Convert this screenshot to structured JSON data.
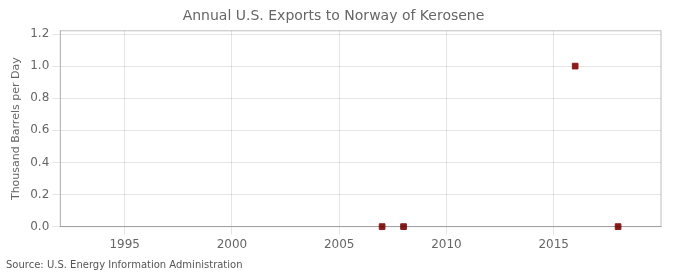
{
  "chart_data": {
    "type": "scatter",
    "title": "Annual U.S. Exports to Norway of Kerosene",
    "ylabel": "Thousand Barrels per Day",
    "annotations": [
      "Source: U.S. Energy Information Administration"
    ],
    "x": [
      2007,
      2008,
      2016,
      2018
    ],
    "values": [
      0.0,
      0.0,
      1.0,
      0.0
    ],
    "color": "#8B1A1A",
    "marker": "square",
    "xlim": [
      1992,
      2020
    ],
    "xticks": [
      1995,
      2000,
      2005,
      2010,
      2015
    ],
    "ylim": [
      0,
      1.22
    ],
    "yticks": [
      {
        "value": 0.0,
        "label": "0.0"
      },
      0.2,
      0.4,
      0.6,
      0.8,
      {
        "value": 1.0,
        "label": "1.0"
      },
      1.2
    ],
    "grid": true
  }
}
